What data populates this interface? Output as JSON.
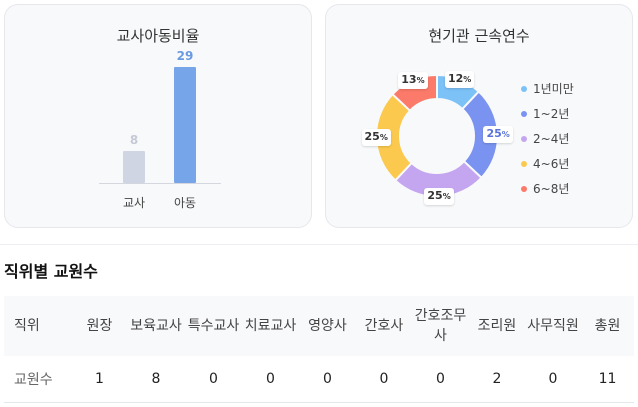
{
  "ratio_card": {
    "title": "교사아동비율"
  },
  "tenure_card": {
    "title": "현기관 근속연수"
  },
  "chart_data": [
    {
      "type": "bar",
      "title": "교사아동비율",
      "categories": [
        "교사",
        "아동"
      ],
      "values": [
        8,
        29
      ],
      "colors": [
        "#cfd5e3",
        "#76a5ea"
      ],
      "value_label_colors": [
        "#c5cad6",
        "#6b9ae0"
      ],
      "ylim": [
        0,
        29
      ],
      "grid": false
    },
    {
      "type": "pie",
      "title": "현기관 근속연수",
      "labels": [
        "1년미만",
        "1~2년",
        "2~4년",
        "4~6년",
        "6~8년"
      ],
      "values": [
        12,
        25,
        25,
        25,
        13
      ],
      "value_labels": [
        "12",
        "25",
        "25",
        "25",
        "13"
      ],
      "unit": "%",
      "colors": [
        "#7cc2f7",
        "#7b93f0",
        "#c4a6f0",
        "#fbc94e",
        "#fb7a6a"
      ],
      "legend_position": "right"
    }
  ],
  "staff_section": {
    "title": "직위별 교원수",
    "headers": [
      "직위",
      "원장",
      "보육교사",
      "특수교사",
      "치료교사",
      "영양사",
      "간호사",
      "간호조무사",
      "조리원",
      "사무직원",
      "총원"
    ],
    "row_label": "교원수",
    "values": [
      "1",
      "8",
      "0",
      "0",
      "0",
      "0",
      "0",
      "2",
      "0",
      "11"
    ]
  }
}
